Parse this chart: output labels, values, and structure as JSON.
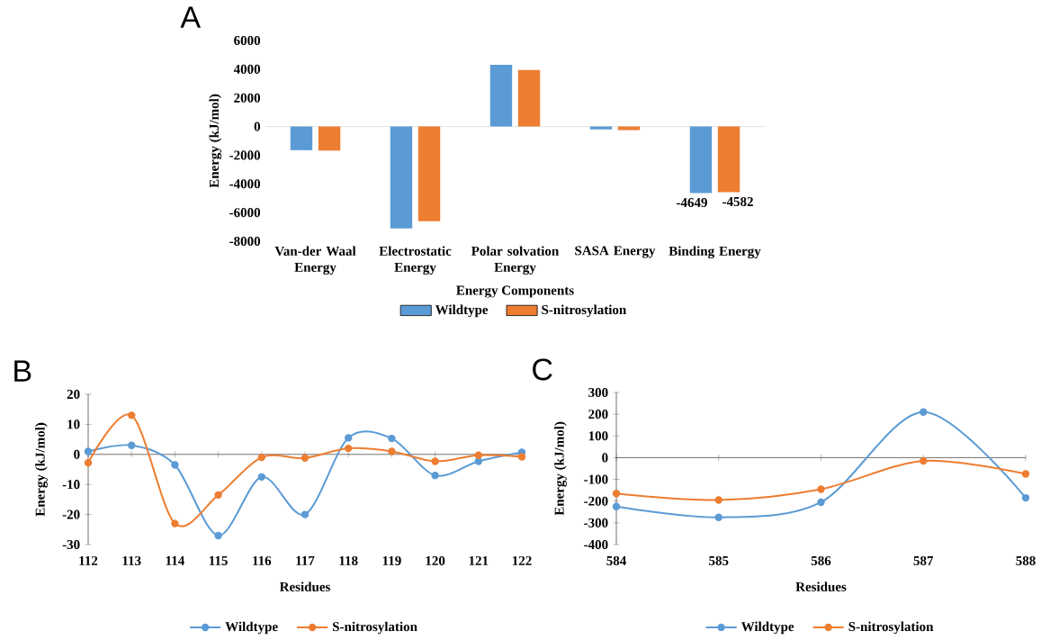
{
  "chart_data": [
    {
      "type": "bar",
      "title": "A",
      "xlabel": "Energy Components",
      "ylabel": "Energy (kJ/mol)",
      "categories": [
        "Van-der Waal Energy",
        "Electrostatic Energy",
        "Polar solvation Energy",
        "SASA Energy",
        "Binding Energy"
      ],
      "series": [
        {
          "name": "Wildtype",
          "color": "#5b9bd5",
          "values": [
            -1650,
            -7100,
            4300,
            -200,
            -4649
          ],
          "value_labels": [
            null,
            null,
            null,
            null,
            "-4649"
          ]
        },
        {
          "name": "S-nitrosylation",
          "color": "#ed7d31",
          "values": [
            -1680,
            -6600,
            3950,
            -250,
            -4582
          ],
          "value_labels": [
            null,
            null,
            null,
            null,
            "-4582"
          ]
        }
      ],
      "ylim": [
        -8000,
        6000
      ],
      "yticks": [
        -8000,
        -6000,
        -4000,
        -2000,
        0,
        2000,
        4000,
        6000
      ],
      "legend": "bottom"
    },
    {
      "type": "line",
      "title": "B",
      "xlabel": "Residues",
      "ylabel": "Energy (kJ/mol)",
      "x": [
        112,
        113,
        114,
        115,
        116,
        117,
        118,
        119,
        120,
        121,
        122
      ],
      "series": [
        {
          "name": "Wildtype",
          "color": "#5b9bd5",
          "values": [
            1,
            3,
            -3.5,
            -27,
            -7.5,
            -20,
            5.5,
            5.3,
            -7,
            -2.3,
            0.7
          ]
        },
        {
          "name": "S-nitrosylation",
          "color": "#ed7d31",
          "values": [
            -2.8,
            13,
            -23,
            -13.5,
            -1,
            -1.2,
            2,
            1,
            -2.3,
            -0.3,
            -0.8
          ]
        }
      ],
      "xlim": [
        112,
        122
      ],
      "xticks": [
        112,
        113,
        114,
        115,
        116,
        117,
        118,
        119,
        120,
        121,
        122
      ],
      "ylim": [
        -30,
        20
      ],
      "yticks": [
        -30,
        -20,
        -10,
        0,
        10,
        20
      ],
      "legend": "bottom",
      "marker": "circle"
    },
    {
      "type": "line",
      "title": "C",
      "xlabel": "Residues",
      "ylabel": "Energy (kJ/mol)",
      "x": [
        584,
        585,
        586,
        587,
        588
      ],
      "series": [
        {
          "name": "Wildtype",
          "color": "#5b9bd5",
          "values": [
            -225,
            -275,
            -205,
            210,
            -185
          ]
        },
        {
          "name": "S-nitrosylation",
          "color": "#ed7d31",
          "values": [
            -165,
            -195,
            -145,
            -15,
            -75
          ]
        }
      ],
      "xlim": [
        584,
        588
      ],
      "xticks": [
        584,
        585,
        586,
        587,
        588
      ],
      "ylim": [
        -400,
        300
      ],
      "yticks": [
        -400,
        -300,
        -200,
        -100,
        0,
        100,
        200,
        300
      ],
      "legend": "bottom",
      "marker": "circle"
    }
  ]
}
